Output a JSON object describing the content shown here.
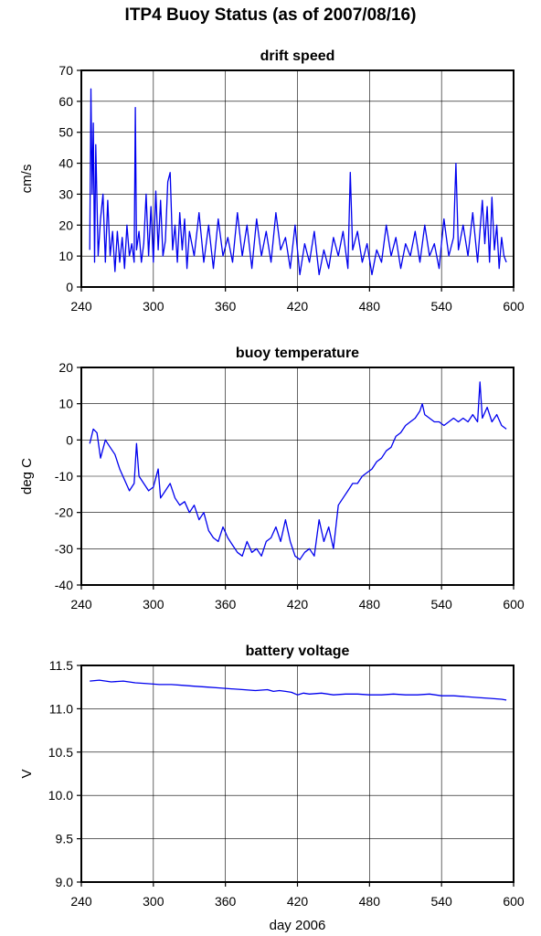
{
  "title": "ITP4 Buoy Status (as of 2007/08/16)",
  "colors": {
    "series": "#0000ee",
    "axis": "#000000",
    "grid": "#000000"
  },
  "chart_data": [
    {
      "type": "line",
      "title": "drift speed",
      "xlabel": "",
      "ylabel": "cm/s",
      "xlim": [
        240,
        600
      ],
      "ylim": [
        0,
        70
      ],
      "xticks": [
        240,
        300,
        360,
        420,
        480,
        540,
        600
      ],
      "yticks": [
        0,
        10,
        20,
        30,
        40,
        50,
        60,
        70
      ],
      "ytick_labels": [
        "0",
        "10",
        "20",
        "30",
        "40",
        "50",
        "60",
        "70"
      ],
      "grid": true,
      "series": [
        {
          "x": [
            247,
            248,
            249,
            250,
            251,
            252,
            254,
            256,
            258,
            260,
            262,
            264,
            266,
            268,
            270,
            272,
            274,
            276,
            278,
            280,
            282,
            284,
            285,
            286,
            288,
            290,
            292,
            294,
            296,
            298,
            300,
            302,
            304,
            306,
            308,
            310,
            312,
            314,
            316,
            318,
            320,
            322,
            324,
            326,
            328,
            330,
            334,
            338,
            342,
            346,
            350,
            354,
            358,
            362,
            366,
            370,
            374,
            378,
            382,
            386,
            390,
            394,
            398,
            402,
            406,
            410,
            414,
            418,
            422,
            426,
            430,
            434,
            438,
            442,
            446,
            450,
            454,
            458,
            462,
            464,
            466,
            470,
            474,
            478,
            482,
            486,
            490,
            494,
            498,
            502,
            506,
            510,
            514,
            518,
            522,
            526,
            530,
            534,
            538,
            542,
            546,
            550,
            552,
            554,
            558,
            562,
            566,
            570,
            574,
            576,
            578,
            580,
            582,
            584,
            586,
            588,
            590,
            592,
            594
          ],
          "values": [
            12,
            64,
            30,
            53,
            8,
            46,
            10,
            22,
            30,
            8,
            28,
            10,
            18,
            5,
            18,
            8,
            16,
            6,
            20,
            10,
            14,
            8,
            58,
            12,
            18,
            8,
            14,
            30,
            10,
            26,
            8,
            31,
            12,
            28,
            10,
            15,
            34,
            37,
            12,
            20,
            8,
            24,
            12,
            22,
            6,
            18,
            10,
            24,
            8,
            20,
            6,
            22,
            10,
            16,
            8,
            24,
            10,
            20,
            6,
            22,
            10,
            18,
            8,
            24,
            12,
            16,
            6,
            20,
            4,
            14,
            8,
            18,
            4,
            12,
            6,
            16,
            10,
            18,
            6,
            37,
            12,
            18,
            8,
            14,
            4,
            12,
            8,
            20,
            10,
            16,
            6,
            14,
            10,
            18,
            8,
            20,
            10,
            14,
            6,
            22,
            10,
            16,
            40,
            12,
            20,
            10,
            24,
            8,
            28,
            14,
            26,
            8,
            29,
            12,
            20,
            6,
            16,
            10,
            8
          ]
        }
      ]
    },
    {
      "type": "line",
      "title": "buoy temperature",
      "xlabel": "",
      "ylabel": "deg C",
      "xlim": [
        240,
        600
      ],
      "ylim": [
        -40,
        20
      ],
      "xticks": [
        240,
        300,
        360,
        420,
        480,
        540,
        600
      ],
      "yticks": [
        -40,
        -30,
        -20,
        -10,
        0,
        10,
        20
      ],
      "ytick_labels": [
        "-40",
        "-30",
        "-20",
        "-10",
        "0",
        "10",
        "20"
      ],
      "grid": true,
      "series": [
        {
          "x": [
            247,
            250,
            253,
            256,
            260,
            264,
            268,
            272,
            276,
            280,
            284,
            286,
            288,
            292,
            296,
            300,
            304,
            306,
            310,
            314,
            318,
            322,
            326,
            330,
            334,
            338,
            342,
            346,
            350,
            354,
            358,
            362,
            366,
            370,
            374,
            378,
            382,
            386,
            390,
            394,
            398,
            402,
            406,
            410,
            414,
            418,
            422,
            426,
            430,
            434,
            438,
            442,
            446,
            450,
            454,
            458,
            462,
            466,
            470,
            474,
            478,
            482,
            486,
            490,
            494,
            498,
            502,
            506,
            510,
            514,
            518,
            522,
            524,
            526,
            530,
            534,
            538,
            542,
            546,
            550,
            554,
            558,
            562,
            566,
            570,
            572,
            574,
            578,
            582,
            586,
            590,
            594
          ],
          "values": [
            -1,
            3,
            2,
            -5,
            0,
            -2,
            -4,
            -8,
            -11,
            -14,
            -12,
            -1,
            -10,
            -12,
            -14,
            -13,
            -8,
            -16,
            -14,
            -12,
            -16,
            -18,
            -17,
            -20,
            -18,
            -22,
            -20,
            -25,
            -27,
            -28,
            -24,
            -27,
            -29,
            -31,
            -32,
            -28,
            -31,
            -30,
            -32,
            -28,
            -27,
            -24,
            -28,
            -22,
            -28,
            -32,
            -33,
            -31,
            -30,
            -32,
            -22,
            -28,
            -24,
            -30,
            -18,
            -16,
            -14,
            -12,
            -12,
            -10,
            -9,
            -8,
            -6,
            -5,
            -3,
            -2,
            1,
            2,
            4,
            5,
            6,
            8,
            10,
            7,
            6,
            5,
            5,
            4,
            5,
            6,
            5,
            6,
            5,
            7,
            5,
            16,
            6,
            9,
            5,
            7,
            4,
            3
          ]
        }
      ]
    },
    {
      "type": "line",
      "title": "battery voltage",
      "xlabel": "day 2006",
      "ylabel": "V",
      "xlim": [
        240,
        600
      ],
      "ylim": [
        9.0,
        11.5
      ],
      "xticks": [
        240,
        300,
        360,
        420,
        480,
        540,
        600
      ],
      "yticks": [
        9.0,
        9.5,
        10.0,
        10.5,
        11.0,
        11.5
      ],
      "ytick_labels": [
        "9.0",
        "9.5",
        "10.0",
        "10.5",
        "11.0",
        "11.5"
      ],
      "grid": true,
      "series": [
        {
          "x": [
            247,
            255,
            265,
            275,
            285,
            295,
            305,
            315,
            325,
            335,
            345,
            355,
            365,
            375,
            385,
            395,
            400,
            405,
            410,
            415,
            420,
            425,
            430,
            440,
            450,
            460,
            470,
            480,
            490,
            500,
            510,
            520,
            530,
            540,
            550,
            560,
            570,
            580,
            590,
            594
          ],
          "values": [
            11.32,
            11.33,
            11.31,
            11.32,
            11.3,
            11.29,
            11.28,
            11.28,
            11.27,
            11.26,
            11.25,
            11.24,
            11.23,
            11.22,
            11.21,
            11.22,
            11.2,
            11.21,
            11.2,
            11.19,
            11.16,
            11.18,
            11.17,
            11.18,
            11.16,
            11.17,
            11.17,
            11.16,
            11.16,
            11.17,
            11.16,
            11.16,
            11.17,
            11.15,
            11.15,
            11.14,
            11.13,
            11.12,
            11.11,
            11.1
          ]
        }
      ]
    }
  ]
}
